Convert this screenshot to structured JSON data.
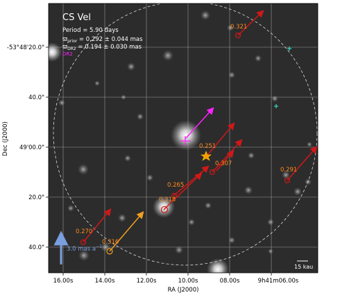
{
  "star": {
    "name": "CS Vel",
    "period": "Period = 5.90 days",
    "parallax_prior": "ϖ",
    "parallax_prior_sub": "prior",
    "parallax_prior_val": " = 0.292 ± 0.044 mas",
    "parallax_dr2": "ϖ",
    "parallax_dr2_sub": "DR2",
    "parallax_dr2_val": " = 0.194 ± 0.030 mas",
    "dr2_legend": "DR2"
  },
  "axes": {
    "xlabel": "RA (J2000)",
    "ylabel": "Dec (J2000)",
    "xticks": [
      "16.00s",
      "14.00s",
      "12.00s",
      "10.00s",
      "08.00s",
      "9h41m06.00s"
    ],
    "yticks": [
      "-53°48'20.0\"",
      "40.0\"",
      "49'00.0\"",
      "20.0\"",
      "40.0\""
    ]
  },
  "scale": {
    "pm_label": "3.0 mas a",
    "pm_sup": "−1",
    "kau_label": "15 kau"
  },
  "companions": [
    {
      "label": "0.321"
    },
    {
      "label": "0.251"
    },
    {
      "label": "0.307"
    },
    {
      "label": "0.291"
    },
    {
      "label": "0.265"
    },
    {
      "label": "0.318"
    },
    {
      "label": "0.270"
    },
    {
      "label": "0.316"
    }
  ],
  "colors": {
    "background": "#2a2a2a",
    "grid": "#bfbfbf",
    "red_arrow": "#d01818",
    "orange_label": "#ff8a1a",
    "magenta": "#ff22ff",
    "pm_blue": "#7a9fe0",
    "cyan_marker": "#38d8c8",
    "cepheid_star": "#ff9900"
  }
}
